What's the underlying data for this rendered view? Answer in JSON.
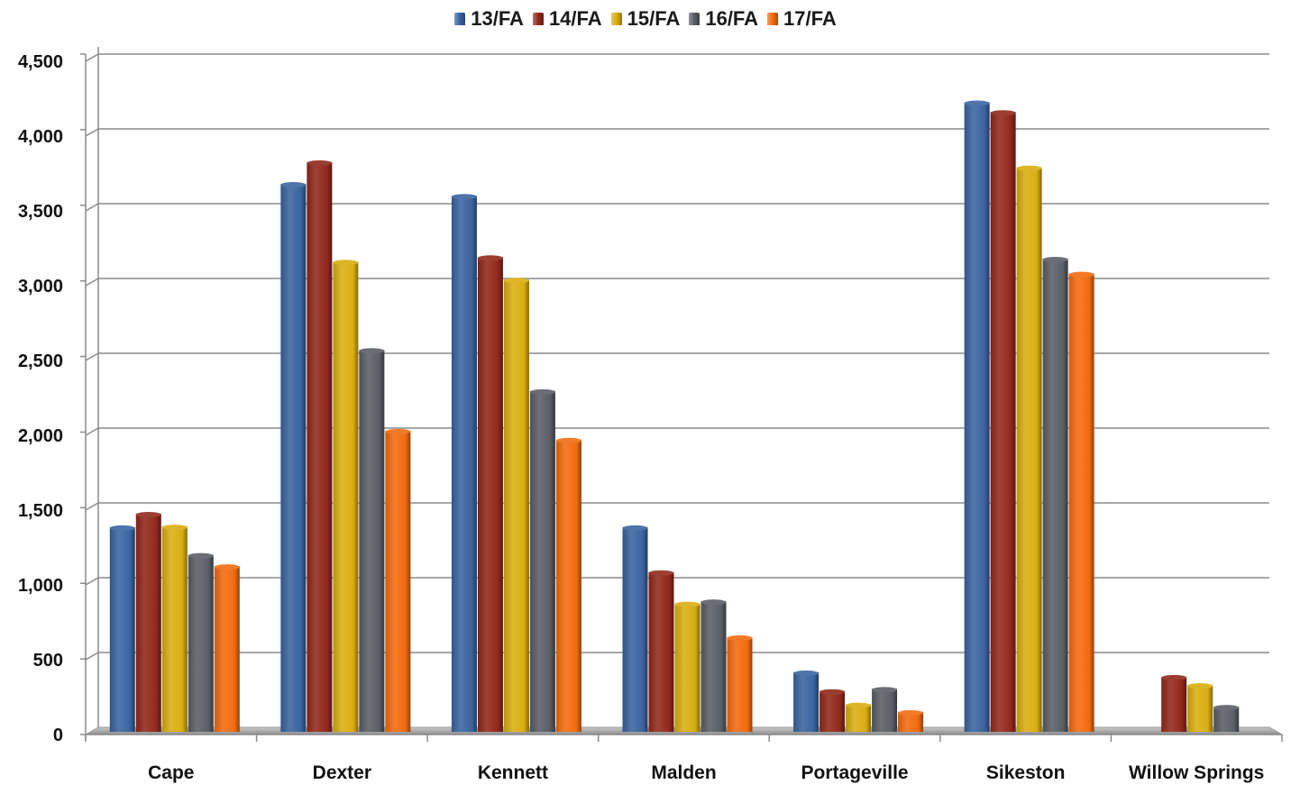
{
  "chart_data": {
    "type": "bar",
    "title": "",
    "xlabel": "",
    "ylabel": "",
    "ylim": [
      0,
      4500
    ],
    "yticks": [
      0,
      500,
      1000,
      1500,
      2000,
      2500,
      3000,
      3500,
      4000,
      4500
    ],
    "ytick_labels": [
      "0",
      "500",
      "1,000",
      "1,500",
      "2,000",
      "2,500",
      "3,000",
      "3,500",
      "4,000",
      "4,500"
    ],
    "grid": true,
    "legend_position": "top",
    "categories": [
      "Cape",
      "Dexter",
      "Kennett",
      "Malden",
      "Portageville",
      "Sikeston",
      "Willow Springs"
    ],
    "series": [
      {
        "name": "13/FA",
        "color": "#3A64A0",
        "values": [
          1345,
          3640,
          3560,
          1345,
          375,
          4185,
          null
        ]
      },
      {
        "name": "14/FA",
        "color": "#92281C",
        "values": [
          1435,
          3785,
          3150,
          1045,
          250,
          4120,
          345
        ]
      },
      {
        "name": "15/FA",
        "color": "#D9AE10",
        "values": [
          1350,
          3120,
          3000,
          835,
          160,
          3750,
          290
        ]
      },
      {
        "name": "16/FA",
        "color": "#5A5E66",
        "values": [
          1160,
          2530,
          2255,
          850,
          265,
          3140,
          145
        ]
      },
      {
        "name": "17/FA",
        "color": "#F26B0F",
        "values": [
          1085,
          1990,
          1930,
          610,
          110,
          3040,
          null
        ]
      }
    ]
  }
}
